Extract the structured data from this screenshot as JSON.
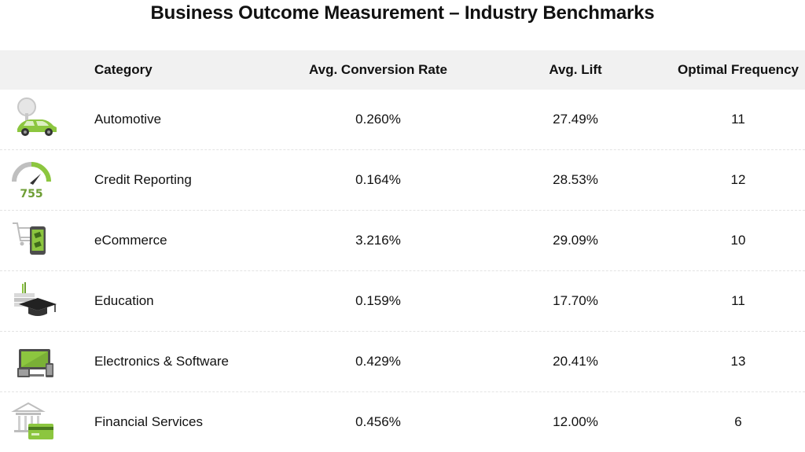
{
  "page": {
    "title": "Business Outcome Measurement – Industry Benchmarks"
  },
  "columns": {
    "category": "Category",
    "conversion": "Avg. Conversion Rate",
    "lift": "Avg. Lift",
    "frequency": "Optimal Frequency"
  },
  "rows": [
    {
      "icon": "car-search-icon",
      "category": "Automotive",
      "conversion": "0.260%",
      "lift": "27.49%",
      "frequency": "11"
    },
    {
      "icon": "credit-gauge-icon",
      "gauge_value": "755",
      "category": "Credit Reporting",
      "conversion": "0.164%",
      "lift": "28.53%",
      "frequency": "12"
    },
    {
      "icon": "cart-phone-icon",
      "category": "eCommerce",
      "conversion": "3.216%",
      "lift": "29.09%",
      "frequency": "10"
    },
    {
      "icon": "graduation-cap-icon",
      "category": "Education",
      "conversion": "0.159%",
      "lift": "17.70%",
      "frequency": "11"
    },
    {
      "icon": "devices-icon",
      "category": "Electronics & Software",
      "conversion": "0.429%",
      "lift": "20.41%",
      "frequency": "13"
    },
    {
      "icon": "bank-card-icon",
      "category": "Financial Services",
      "conversion": "0.456%",
      "lift": "12.00%",
      "frequency": "6"
    }
  ],
  "colors": {
    "accent": "#7cb342",
    "header_bg": "#f1f1f1",
    "text": "#111111"
  }
}
